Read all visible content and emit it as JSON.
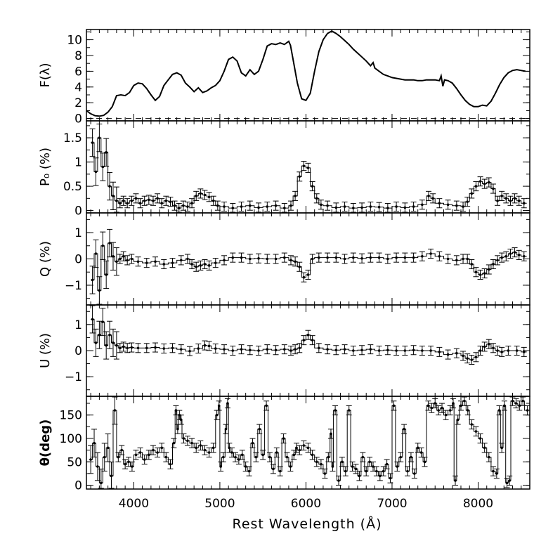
{
  "figure": {
    "xlabel": "Rest Wavelength (Å)",
    "xlim": [
      3450,
      8600
    ],
    "xticks": [
      4000,
      5000,
      6000,
      7000,
      8000
    ],
    "xtick_labels": [
      "4000",
      "5000",
      "6000",
      "7000",
      "8000"
    ]
  },
  "chart_data": [
    {
      "type": "line",
      "panel": "flux",
      "ylabel": "F(λ)",
      "ylim": [
        -0.3,
        11.3
      ],
      "yticks": [
        0,
        2,
        4,
        6,
        8,
        10
      ],
      "ytick_labels": [
        "0",
        "2",
        "4",
        "6",
        "8",
        "10"
      ],
      "reference_line": {
        "y": 0,
        "style": "dashed"
      },
      "series": [
        {
          "name": "flux",
          "x": [
            3450,
            3500,
            3550,
            3600,
            3650,
            3700,
            3750,
            3800,
            3850,
            3900,
            3950,
            4000,
            4050,
            4100,
            4150,
            4200,
            4250,
            4300,
            4350,
            4400,
            4450,
            4500,
            4550,
            4600,
            4650,
            4700,
            4750,
            4800,
            4850,
            4900,
            4950,
            5000,
            5050,
            5100,
            5150,
            5200,
            5250,
            5300,
            5350,
            5400,
            5450,
            5500,
            5550,
            5600,
            5650,
            5700,
            5750,
            5800,
            5820,
            5850,
            5900,
            5950,
            6000,
            6050,
            6100,
            6150,
            6200,
            6250,
            6300,
            6350,
            6400,
            6450,
            6500,
            6550,
            6600,
            6650,
            6700,
            6750,
            6780,
            6800,
            6850,
            6900,
            6950,
            7000,
            7050,
            7100,
            7150,
            7200,
            7250,
            7300,
            7350,
            7400,
            7450,
            7500,
            7550,
            7570,
            7590,
            7610,
            7650,
            7700,
            7750,
            7800,
            7850,
            7900,
            7950,
            8000,
            8050,
            8100,
            8150,
            8200,
            8250,
            8300,
            8350,
            8400,
            8450,
            8500,
            8550
          ],
          "y": [
            1.0,
            0.6,
            0.35,
            0.3,
            0.4,
            0.8,
            1.5,
            2.9,
            3.0,
            2.9,
            3.3,
            4.2,
            4.5,
            4.4,
            3.8,
            3.0,
            2.3,
            2.8,
            4.2,
            4.9,
            5.6,
            5.8,
            5.5,
            4.5,
            4.0,
            3.4,
            3.9,
            3.3,
            3.5,
            3.9,
            4.2,
            4.8,
            6.0,
            7.5,
            7.8,
            7.3,
            5.8,
            5.4,
            6.2,
            5.6,
            6.0,
            7.5,
            9.2,
            9.5,
            9.4,
            9.6,
            9.4,
            9.8,
            9.3,
            7.5,
            4.5,
            2.5,
            2.3,
            3.2,
            6.0,
            8.5,
            10.0,
            10.8,
            11.1,
            10.8,
            10.4,
            9.9,
            9.4,
            8.8,
            8.3,
            7.8,
            7.3,
            6.7,
            7.1,
            6.4,
            6.0,
            5.6,
            5.4,
            5.2,
            5.1,
            5.0,
            4.9,
            4.9,
            4.9,
            4.8,
            4.8,
            4.9,
            4.9,
            4.9,
            4.8,
            5.4,
            4.1,
            4.9,
            4.8,
            4.5,
            3.8,
            3.0,
            2.3,
            1.8,
            1.5,
            1.5,
            1.7,
            1.6,
            2.2,
            3.2,
            4.3,
            5.2,
            5.8,
            6.1,
            6.2,
            6.1,
            6.0
          ]
        }
      ]
    },
    {
      "type": "line",
      "panel": "polarization",
      "ylabel": "P₀ (%)",
      "ylim": [
        -0.05,
        1.85
      ],
      "yticks": [
        0,
        0.5,
        1,
        1.5
      ],
      "ytick_labels": [
        "0",
        "0.5",
        "1",
        "1.5"
      ],
      "series": [
        {
          "name": "P0",
          "x": [
            3500,
            3540,
            3580,
            3620,
            3660,
            3700,
            3740,
            3780,
            3820,
            3860,
            3900,
            3950,
            4000,
            4050,
            4100,
            4150,
            4200,
            4250,
            4300,
            4350,
            4400,
            4450,
            4500,
            4550,
            4600,
            4650,
            4700,
            4750,
            4800,
            4850,
            4900,
            4950,
            5000,
            5100,
            5200,
            5300,
            5400,
            5500,
            5600,
            5700,
            5800,
            5850,
            5900,
            5950,
            6000,
            6050,
            6100,
            6150,
            6200,
            6300,
            6400,
            6500,
            6600,
            6700,
            6800,
            6900,
            7000,
            7100,
            7200,
            7300,
            7400,
            7450,
            7500,
            7600,
            7700,
            7800,
            7850,
            7900,
            7950,
            8000,
            8050,
            8100,
            8150,
            8200,
            8250,
            8300,
            8350,
            8400,
            8450,
            8500
          ],
          "y": [
            1.4,
            0.8,
            1.5,
            0.9,
            1.2,
            0.5,
            0.3,
            0.2,
            0.15,
            0.2,
            0.15,
            0.2,
            0.25,
            0.15,
            0.2,
            0.22,
            0.2,
            0.25,
            0.15,
            0.2,
            0.18,
            0.1,
            0.05,
            0.1,
            0.08,
            0.15,
            0.3,
            0.35,
            0.32,
            0.28,
            0.2,
            0.1,
            0.08,
            0.05,
            0.08,
            0.1,
            0.06,
            0.08,
            0.1,
            0.05,
            0.1,
            0.3,
            0.7,
            0.92,
            0.88,
            0.5,
            0.25,
            0.12,
            0.1,
            0.06,
            0.08,
            0.05,
            0.06,
            0.08,
            0.07,
            0.05,
            0.08,
            0.06,
            0.08,
            0.12,
            0.3,
            0.25,
            0.15,
            0.12,
            0.1,
            0.08,
            0.18,
            0.35,
            0.5,
            0.6,
            0.55,
            0.58,
            0.45,
            0.2,
            0.3,
            0.25,
            0.2,
            0.25,
            0.2,
            0.15
          ]
        }
      ]
    },
    {
      "type": "line",
      "panel": "Q",
      "ylabel": "Q (%)",
      "ylim": [
        -1.75,
        1.75
      ],
      "yticks": [
        -1,
        0,
        1
      ],
      "ytick_labels": [
        "−1",
        "0",
        "1"
      ],
      "series": [
        {
          "name": "Q",
          "x": [
            3500,
            3540,
            3580,
            3620,
            3660,
            3700,
            3740,
            3780,
            3820,
            3860,
            3900,
            3950,
            4000,
            4100,
            4200,
            4300,
            4400,
            4500,
            4600,
            4650,
            4700,
            4750,
            4800,
            4850,
            4900,
            5000,
            5100,
            5200,
            5300,
            5400,
            5500,
            5600,
            5700,
            5800,
            5850,
            5900,
            5950,
            6000,
            6050,
            6100,
            6200,
            6300,
            6400,
            6500,
            6600,
            6700,
            6800,
            6900,
            7000,
            7100,
            7200,
            7300,
            7400,
            7500,
            7600,
            7700,
            7800,
            7850,
            7900,
            7950,
            8000,
            8050,
            8100,
            8150,
            8200,
            8250,
            8300,
            8350,
            8400,
            8450,
            8500
          ],
          "y": [
            -0.8,
            0.2,
            -1.2,
            0.5,
            -0.6,
            0.6,
            0.1,
            -0.1,
            0.0,
            0.1,
            -0.05,
            0.0,
            -0.1,
            -0.15,
            -0.1,
            -0.2,
            -0.15,
            -0.05,
            0.0,
            -0.2,
            -0.3,
            -0.25,
            -0.2,
            -0.25,
            -0.15,
            -0.05,
            0.05,
            0.05,
            0.0,
            0.02,
            0.0,
            0.0,
            0.05,
            -0.05,
            -0.1,
            -0.3,
            -0.7,
            -0.6,
            0.0,
            0.05,
            0.05,
            0.05,
            0.0,
            0.05,
            0.02,
            0.05,
            0.05,
            0.0,
            0.05,
            0.05,
            0.05,
            0.1,
            0.2,
            0.1,
            0.0,
            -0.05,
            0.0,
            0.0,
            -0.2,
            -0.5,
            -0.6,
            -0.55,
            -0.4,
            -0.2,
            -0.05,
            0.05,
            0.1,
            0.2,
            0.25,
            0.15,
            0.1
          ]
        }
      ]
    },
    {
      "type": "line",
      "panel": "U",
      "ylabel": "U (%)",
      "ylim": [
        -1.75,
        1.75
      ],
      "yticks": [
        -1,
        0,
        1
      ],
      "ytick_labels": [
        "−1",
        "0",
        "1"
      ],
      "series": [
        {
          "name": "U",
          "x": [
            3500,
            3540,
            3580,
            3620,
            3660,
            3700,
            3740,
            3780,
            3820,
            3860,
            3900,
            3950,
            4000,
            4100,
            4200,
            4300,
            4400,
            4500,
            4600,
            4700,
            4800,
            4850,
            4900,
            5000,
            5100,
            5200,
            5300,
            5400,
            5500,
            5600,
            5700,
            5800,
            5850,
            5900,
            5950,
            6000,
            6050,
            6100,
            6200,
            6300,
            6400,
            6500,
            6600,
            6700,
            6800,
            6900,
            7000,
            7100,
            7200,
            7300,
            7400,
            7500,
            7600,
            7700,
            7800,
            7850,
            7900,
            7950,
            8000,
            8050,
            8100,
            8150,
            8200,
            8250,
            8300,
            8400,
            8500
          ],
          "y": [
            1.2,
            0.3,
            0.6,
            1.1,
            0.2,
            0.6,
            0.3,
            0.2,
            0.1,
            0.15,
            0.1,
            0.12,
            0.1,
            0.1,
            0.12,
            0.08,
            0.1,
            0.05,
            -0.02,
            0.08,
            0.2,
            0.18,
            0.08,
            0.05,
            0.0,
            0.05,
            0.02,
            0.0,
            0.05,
            0.02,
            0.05,
            0.0,
            0.05,
            0.1,
            0.4,
            0.6,
            0.4,
            0.1,
            0.05,
            0.02,
            0.05,
            0.0,
            0.02,
            0.05,
            0.0,
            0.02,
            0.0,
            0.0,
            0.02,
            0.0,
            0.0,
            -0.05,
            -0.15,
            -0.1,
            -0.2,
            -0.3,
            -0.35,
            -0.25,
            0.0,
            0.15,
            0.25,
            0.1,
            0.0,
            -0.05,
            0.0,
            0.0,
            -0.05
          ]
        }
      ]
    },
    {
      "type": "line",
      "panel": "theta",
      "ylabel": "θ(deg)",
      "ylim": [
        -8,
        190
      ],
      "yticks": [
        0,
        50,
        100,
        150
      ],
      "ytick_labels": [
        "0",
        "50",
        "100",
        "150"
      ],
      "series": [
        {
          "name": "theta",
          "x": [
            3480,
            3520,
            3560,
            3600,
            3640,
            3680,
            3720,
            3760,
            3800,
            3840,
            3880,
            3920,
            3960,
            4000,
            4050,
            4100,
            4150,
            4200,
            4250,
            4300,
            4350,
            4400,
            4450,
            4480,
            4500,
            4520,
            4540,
            4560,
            4600,
            4650,
            4700,
            4750,
            4800,
            4850,
            4900,
            4950,
            4980,
            5000,
            5020,
            5060,
            5080,
            5100,
            5120,
            5160,
            5200,
            5240,
            5280,
            5320,
            5360,
            5400,
            5440,
            5480,
            5520,
            5560,
            5600,
            5640,
            5680,
            5720,
            5760,
            5800,
            5840,
            5880,
            5900,
            5950,
            6000,
            6050,
            6100,
            6150,
            6200,
            6240,
            6280,
            6300,
            6320,
            6360,
            6400,
            6440,
            6480,
            6520,
            6560,
            6600,
            6640,
            6680,
            6720,
            6760,
            6800,
            6840,
            6880,
            6920,
            6960,
            7000,
            7040,
            7080,
            7120,
            7160,
            7200,
            7240,
            7280,
            7320,
            7360,
            7400,
            7440,
            7480,
            7520,
            7560,
            7600,
            7650,
            7700,
            7720,
            7750,
            7780,
            7820,
            7860,
            7900,
            7950,
            8000,
            8050,
            8100,
            8150,
            8200,
            8230,
            8260,
            8290,
            8320,
            8350,
            8380,
            8420,
            8460,
            8500,
            8540
          ],
          "y": [
            55,
            90,
            40,
            5,
            60,
            80,
            20,
            160,
            60,
            75,
            45,
            50,
            40,
            65,
            70,
            55,
            65,
            75,
            70,
            80,
            60,
            45,
            90,
            160,
            120,
            150,
            140,
            100,
            95,
            90,
            80,
            85,
            75,
            70,
            80,
            150,
            170,
            40,
            60,
            120,
            175,
            80,
            70,
            60,
            55,
            65,
            40,
            30,
            90,
            60,
            120,
            65,
            170,
            60,
            35,
            70,
            30,
            100,
            60,
            40,
            65,
            80,
            75,
            85,
            80,
            65,
            50,
            45,
            25,
            60,
            110,
            40,
            160,
            10,
            50,
            30,
            160,
            40,
            35,
            20,
            60,
            30,
            50,
            40,
            30,
            20,
            30,
            45,
            15,
            170,
            40,
            60,
            120,
            30,
            60,
            25,
            80,
            70,
            50,
            170,
            165,
            175,
            160,
            165,
            150,
            160,
            175,
            10,
            140,
            170,
            180,
            160,
            130,
            115,
            100,
            80,
            60,
            30,
            25,
            160,
            80,
            170,
            5,
            10,
            180,
            175,
            170,
            180,
            160
          ]
        }
      ]
    }
  ]
}
